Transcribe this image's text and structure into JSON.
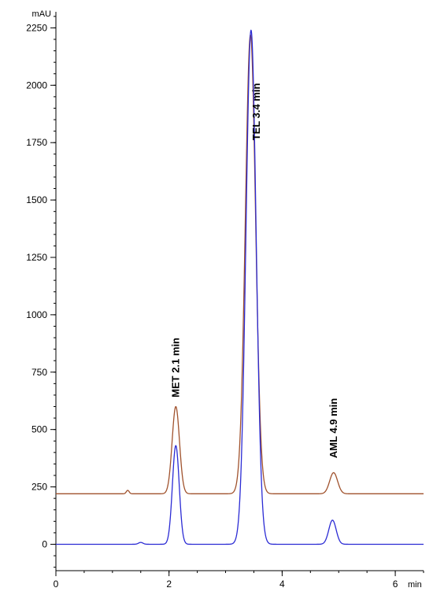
{
  "chart_data": {
    "type": "line",
    "title": "",
    "xlabel": "",
    "ylabel": "",
    "x_unit": "min",
    "y_unit": "mAU",
    "xlim": [
      0,
      6.5
    ],
    "ylim": [
      -115,
      2320
    ],
    "x_ticks": [
      0,
      2,
      4,
      6
    ],
    "x_tick_labels": [
      "0",
      "2",
      "4",
      "6"
    ],
    "y_ticks": [
      0,
      250,
      500,
      750,
      1000,
      1250,
      1500,
      1750,
      2000,
      2250
    ],
    "y_tick_labels": [
      "0",
      "250",
      "500",
      "750",
      "1000",
      "1250",
      "1500",
      "1750",
      "2000",
      "2250"
    ],
    "grid": false,
    "legend": "none",
    "series": [
      {
        "color": "#a0522d",
        "baseline": 220,
        "peaks": [
          {
            "center": 1.27,
            "height": 15,
            "width": 0.025
          },
          {
            "center": 2.12,
            "height": 380,
            "width": 0.065
          },
          {
            "center": 3.44,
            "height": 2000,
            "width": 0.09
          },
          {
            "center": 4.91,
            "height": 92,
            "width": 0.07
          }
        ]
      },
      {
        "color": "#2b2bd4",
        "baseline": 0,
        "peaks": [
          {
            "center": 1.5,
            "height": 8,
            "width": 0.04
          },
          {
            "center": 2.12,
            "height": 430,
            "width": 0.06
          },
          {
            "center": 3.45,
            "height": 2240,
            "width": 0.09
          },
          {
            "center": 4.89,
            "height": 105,
            "width": 0.065
          }
        ]
      }
    ],
    "annotations": [
      {
        "text": "MET  2.1 min",
        "x": 2.12,
        "y": 640
      },
      {
        "text": "TEL  3.4 min",
        "x": 3.55,
        "y": 1760
      },
      {
        "text": "AML  4.9 min",
        "x": 4.91,
        "y": 375
      }
    ]
  }
}
